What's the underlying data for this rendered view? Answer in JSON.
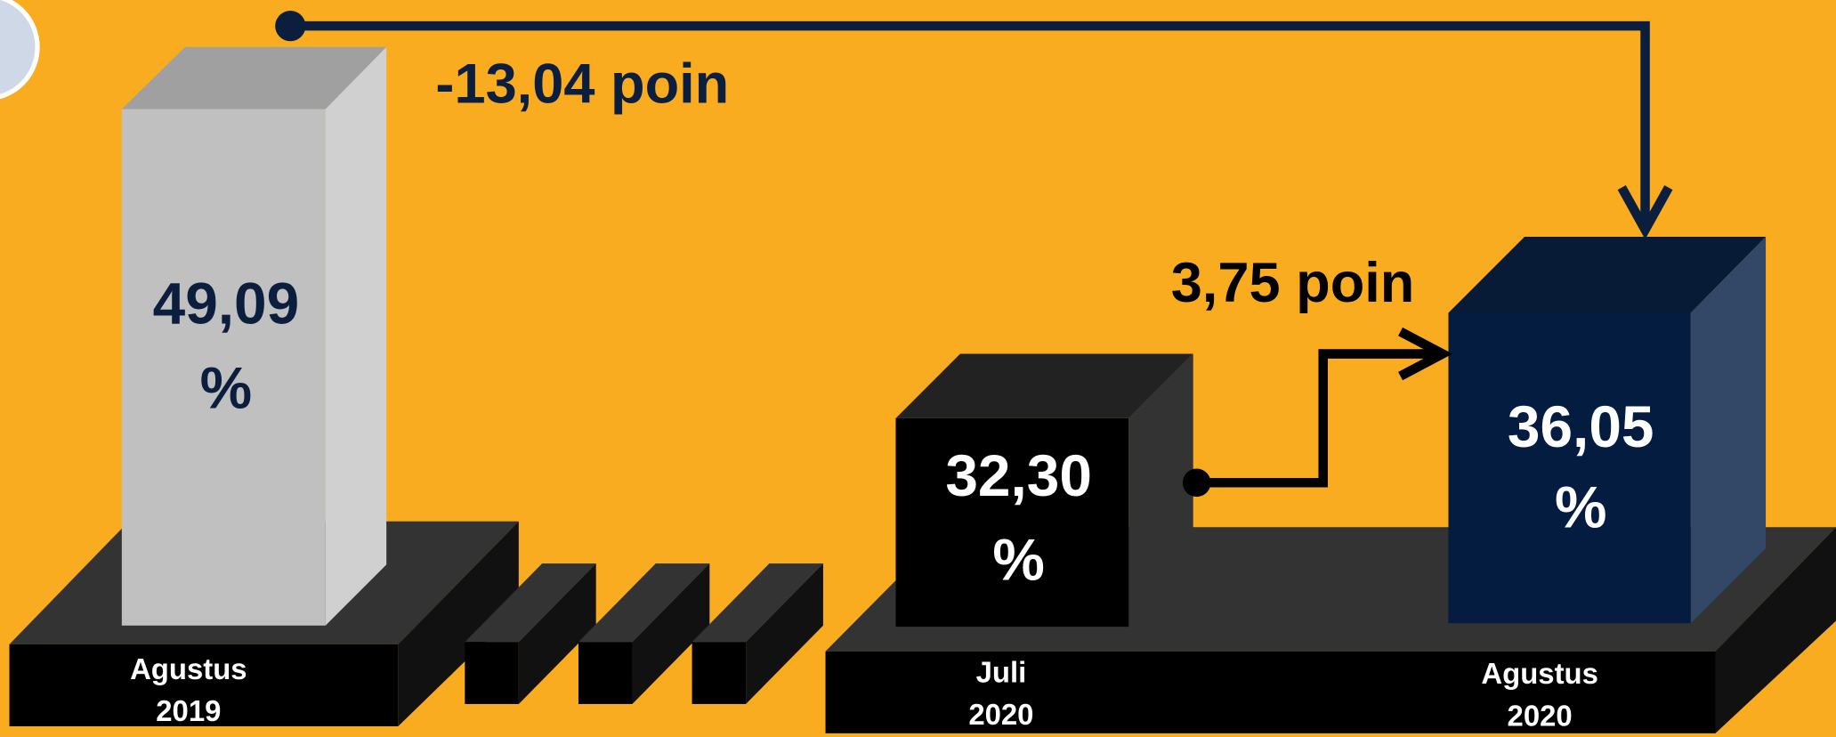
{
  "bars": [
    {
      "value": "49,09",
      "unit": "%",
      "period": [
        "Agustus",
        "2019"
      ]
    },
    {
      "value": "32,30",
      "unit": "%",
      "period": [
        "Juli",
        "2020"
      ]
    },
    {
      "value": "36,05",
      "unit": "%",
      "period": [
        "Agustus",
        "2020"
      ]
    }
  ],
  "annotations": {
    "yearly_change": "-13,04 poin",
    "monthly_change": "3,75 poin"
  }
}
